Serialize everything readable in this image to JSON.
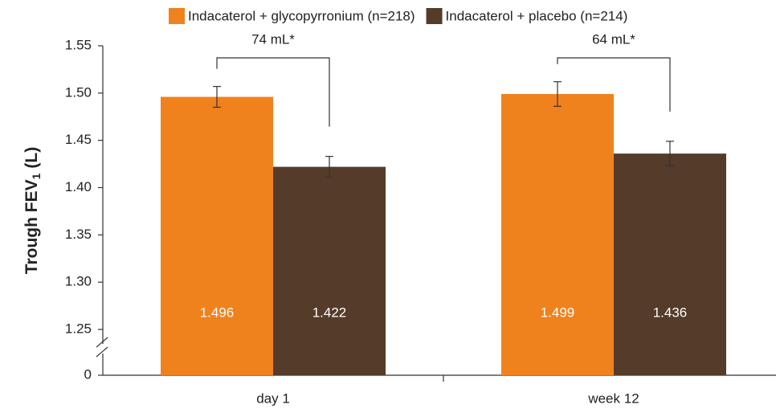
{
  "chart_data": {
    "type": "bar",
    "categories": [
      "day 1",
      "week 12"
    ],
    "series": [
      {
        "name": "Indacaterol + glycopyrronium (n=218)",
        "color": "#f0821e",
        "values": [
          1.496,
          1.499
        ],
        "errors": [
          0.011,
          0.013
        ]
      },
      {
        "name": "Indacaterol + placebo (n=214)",
        "color": "#553b29",
        "values": [
          1.422,
          1.436
        ],
        "errors": [
          0.011,
          0.013
        ]
      }
    ],
    "annotations": [
      "74 mL*",
      "64 mL*"
    ],
    "ylabel": {
      "text": "Trough FEV",
      "subscript": "1",
      "suffix": "(L)"
    },
    "ylim": [
      0,
      1.55
    ],
    "axis_break": [
      0,
      1.25
    ],
    "yticks": [
      0,
      1.25,
      {
        "value": 1.3,
        "label": "1.30"
      },
      1.35,
      {
        "value": 1.4,
        "label": "1.40"
      },
      1.45,
      {
        "value": 1.5,
        "label": "1.50"
      },
      1.55
    ],
    "legend": "top",
    "grid": false
  }
}
